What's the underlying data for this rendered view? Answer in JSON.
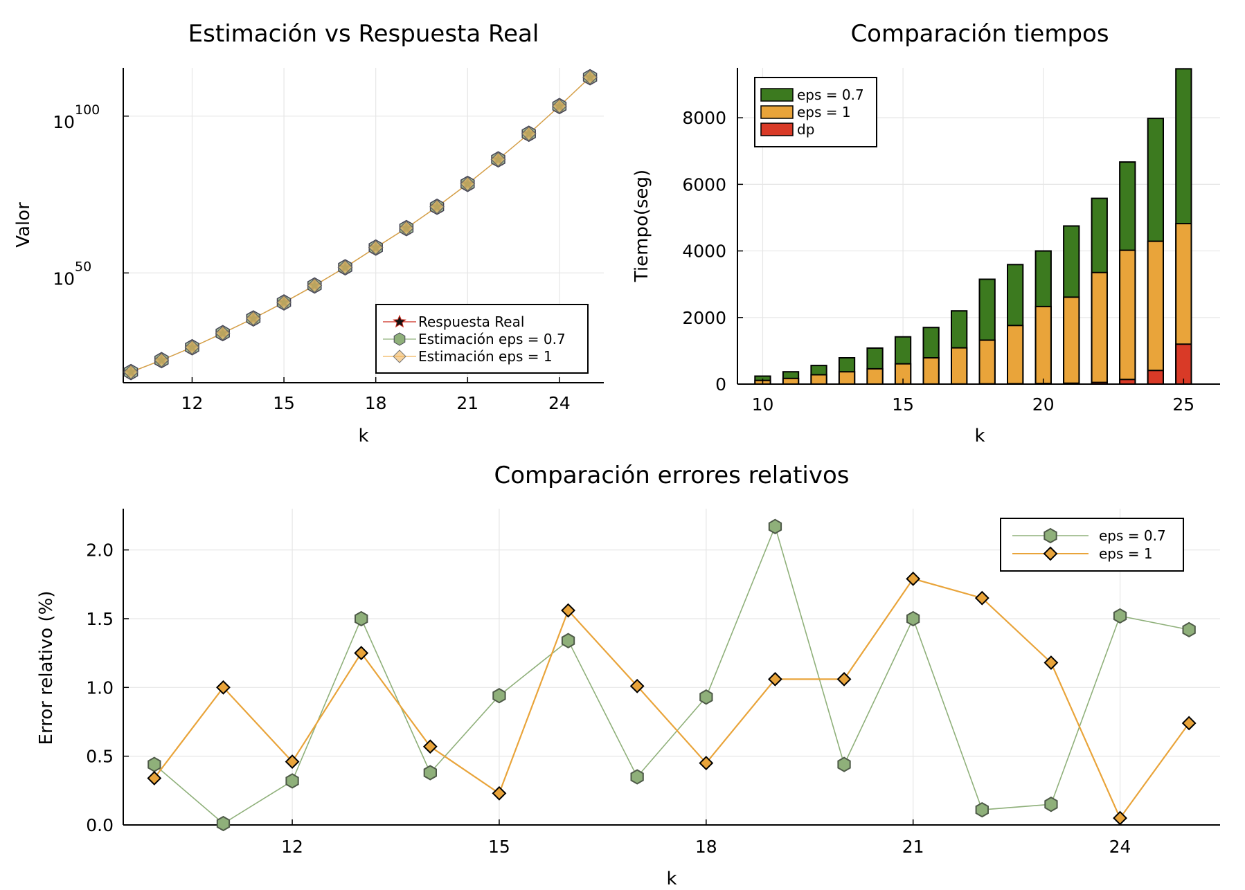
{
  "colors": {
    "green": "#3c7a1f",
    "orange": "#e9a43a",
    "red": "#d93a27",
    "green_marker": "#8fb07a",
    "orange_marker": "#f0b45b",
    "star": "#cc2b1d"
  },
  "chart_data": [
    {
      "id": "top-left",
      "type": "line",
      "title": "Estimación vs Respuesta Real",
      "xlabel": "k",
      "ylabel": "Valor",
      "yscale": "log10",
      "x": [
        10,
        11,
        12,
        13,
        14,
        15,
        16,
        17,
        18,
        19,
        20,
        21,
        22,
        23,
        24,
        25
      ],
      "xticks": [
        12,
        15,
        18,
        21,
        24
      ],
      "yticks": [
        50,
        100
      ],
      "ytick_labels": [
        {
          "base": "10",
          "exp": "50"
        },
        {
          "base": "10",
          "exp": "100"
        }
      ],
      "xlim": [
        9.75,
        25.45
      ],
      "ylim_log10": [
        15,
        115.4
      ],
      "series": [
        {
          "name": "Respuesta Real",
          "marker": "star",
          "log10_values": [
            18.4,
            22.2,
            26.3,
            30.8,
            35.5,
            40.6,
            46.0,
            51.8,
            58.1,
            64.3,
            71.1,
            78.4,
            86.2,
            94.4,
            103.2,
            112.4
          ]
        },
        {
          "name": "Estimación eps = 0.7",
          "marker": "hexagon",
          "log10_values": [
            18.4,
            22.2,
            26.3,
            30.8,
            35.5,
            40.6,
            46.0,
            51.8,
            58.1,
            64.3,
            71.1,
            78.4,
            86.2,
            94.4,
            103.2,
            112.4
          ]
        },
        {
          "name": "Estimación eps = 1",
          "marker": "diamond",
          "log10_values": [
            18.4,
            22.2,
            26.3,
            30.8,
            35.5,
            40.6,
            46.0,
            51.8,
            58.1,
            64.3,
            71.1,
            78.4,
            86.2,
            94.4,
            103.2,
            112.4
          ]
        }
      ],
      "legend_position": "bottom-right"
    },
    {
      "id": "top-right",
      "type": "bar",
      "title": "Comparación tiempos",
      "xlabel": "k",
      "ylabel": "Tiempo(seg)",
      "categories": [
        10,
        11,
        12,
        13,
        14,
        15,
        16,
        17,
        18,
        19,
        20,
        21,
        22,
        23,
        24,
        25
      ],
      "xticks": [
        10,
        15,
        20,
        25
      ],
      "yticks": [
        0,
        2000,
        4000,
        6000,
        8000
      ],
      "xlim": [
        9.1,
        26.3
      ],
      "ylim": [
        0,
        9500
      ],
      "series": [
        {
          "name": "eps = 0.7",
          "values": [
            240,
            370,
            560,
            790,
            1080,
            1420,
            1700,
            2200,
            3150,
            3590,
            4000,
            4750,
            5580,
            6670,
            7980,
            9470
          ]
        },
        {
          "name": "eps = 1",
          "values": [
            110,
            170,
            280,
            370,
            460,
            610,
            790,
            1090,
            1320,
            1760,
            2330,
            2610,
            3350,
            4020,
            4290,
            4820
          ]
        },
        {
          "name": "dp",
          "values": [
            0,
            0,
            0,
            1,
            1,
            2,
            3,
            5,
            8,
            12,
            18,
            28,
            50,
            140,
            410,
            1200
          ]
        }
      ],
      "legend_position": "top-left"
    },
    {
      "id": "bottom",
      "type": "line",
      "title": "Comparación errores relativos",
      "xlabel": "k",
      "ylabel": "Error relativo (%)",
      "x": [
        10,
        11,
        12,
        13,
        14,
        15,
        16,
        17,
        18,
        19,
        20,
        21,
        22,
        23,
        24,
        25
      ],
      "xticks": [
        12,
        15,
        18,
        21,
        24
      ],
      "yticks": [
        "0.0",
        "0.5",
        "1.0",
        "1.5",
        "2.0"
      ],
      "xlim": [
        9.55,
        25.45
      ],
      "ylim": [
        0,
        2.3
      ],
      "series": [
        {
          "name": "eps = 0.7",
          "marker": "hexagon",
          "values": [
            0.44,
            0.01,
            0.32,
            1.5,
            0.38,
            0.94,
            1.34,
            0.35,
            0.93,
            2.17,
            0.44,
            1.5,
            0.11,
            0.15,
            1.52,
            1.42
          ]
        },
        {
          "name": "eps = 1",
          "marker": "diamond",
          "values": [
            0.34,
            1.0,
            0.46,
            1.25,
            0.57,
            0.23,
            1.56,
            1.01,
            0.45,
            1.06,
            1.06,
            1.79,
            1.65,
            1.18,
            0.05,
            0.74
          ]
        }
      ],
      "legend_position": "top-right"
    }
  ]
}
